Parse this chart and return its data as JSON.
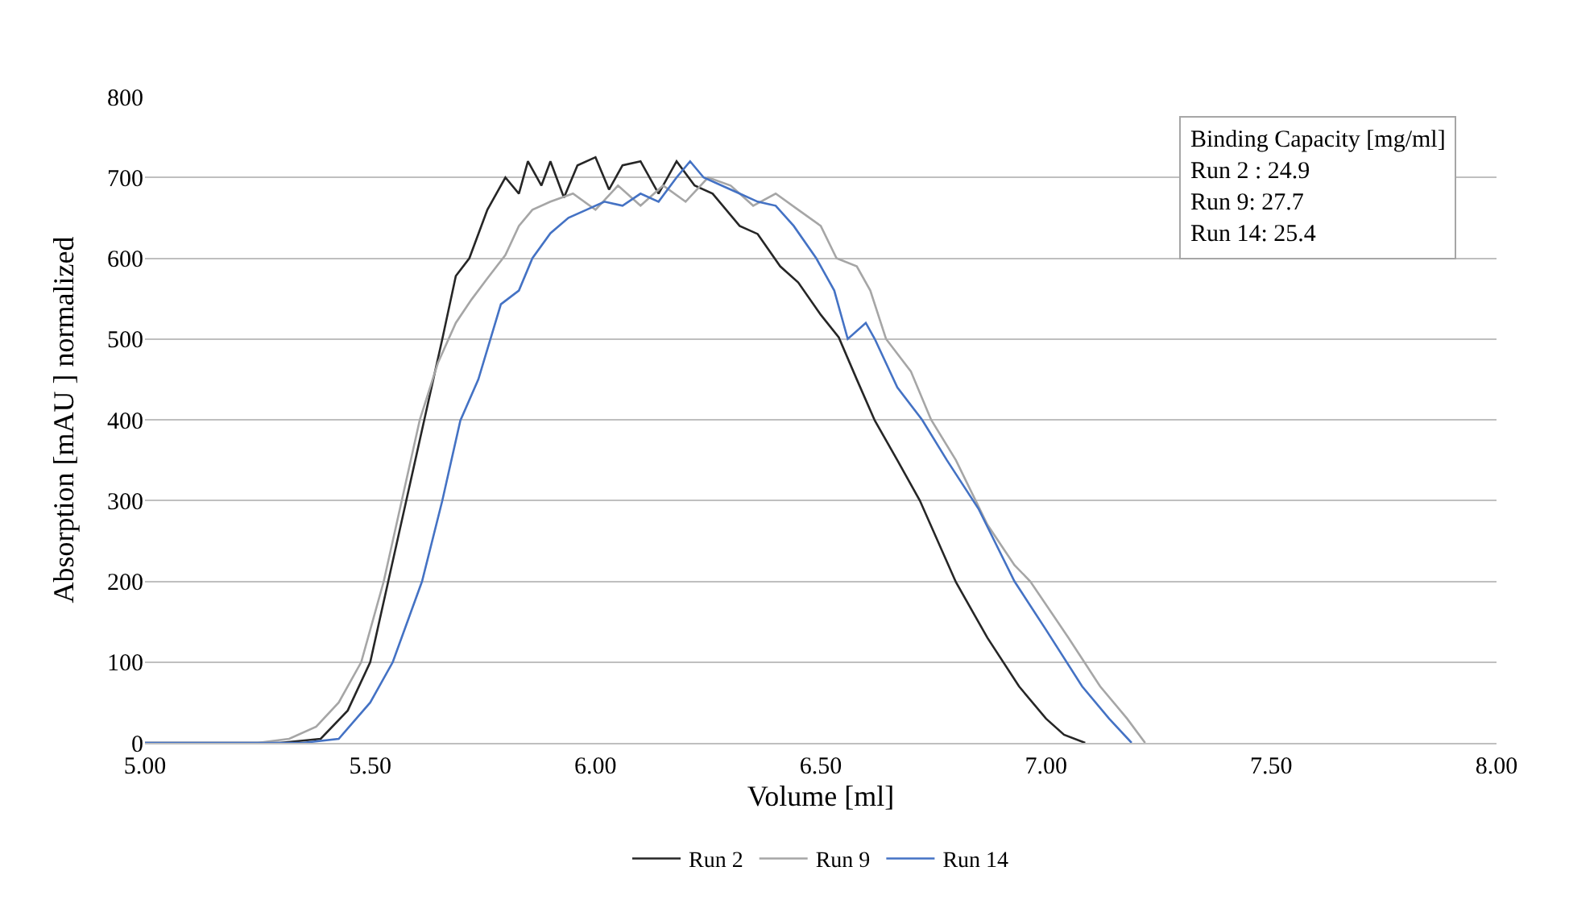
{
  "chart_data": {
    "type": "line",
    "xlabel": "Volume [ml]",
    "ylabel": "Absorption [mAU ] normalized",
    "xlim": [
      5.0,
      8.0
    ],
    "ylim": [
      0,
      800
    ],
    "xticks": [
      {
        "value": 5.0,
        "label": "5.00"
      },
      {
        "value": 5.5,
        "label": "5.50"
      },
      {
        "value": 6.0,
        "label": "6.00"
      },
      {
        "value": 6.5,
        "label": "6.50"
      },
      {
        "value": 7.0,
        "label": "7.00"
      },
      {
        "value": 7.5,
        "label": "7.50"
      },
      {
        "value": 8.0,
        "label": "8.00"
      }
    ],
    "yticks": [
      0,
      100,
      200,
      300,
      400,
      500,
      600,
      700,
      800
    ],
    "grid": "y",
    "legend": "bottom",
    "marker": "none",
    "line_style": "solid",
    "annotations": [
      "Binding Capacity [mg/ml]\nRun 2 : 24.9\nRun 9: 27.7\nRun 14: 25.4"
    ],
    "series": [
      {
        "name": "Run 2",
        "color": "#262626",
        "x": [
          5.0,
          5.3,
          5.39,
          5.45,
          5.5,
          5.54,
          5.58,
          5.62,
          5.66,
          5.69,
          5.72,
          5.76,
          5.8,
          5.83,
          5.85,
          5.88,
          5.9,
          5.93,
          5.96,
          6.0,
          6.03,
          6.06,
          6.1,
          6.14,
          6.18,
          6.22,
          6.26,
          6.32,
          6.36,
          6.41,
          6.45,
          6.5,
          6.54,
          6.58,
          6.62,
          6.67,
          6.72,
          6.8,
          6.87,
          6.94,
          7.0,
          7.04,
          7.087
        ],
        "values": [
          0,
          0,
          5,
          40,
          100,
          200,
          300,
          400,
          500,
          578,
          600,
          660,
          700,
          680,
          720,
          690,
          720,
          675,
          715,
          725,
          685,
          715,
          720,
          680,
          720,
          690,
          680,
          640,
          630,
          590,
          570,
          530,
          502,
          450,
          399,
          350,
          300,
          199,
          130,
          70,
          30,
          10,
          0
        ]
      },
      {
        "name": "Run 9",
        "color": "#a6a6a6",
        "x": [
          5.0,
          5.25,
          5.32,
          5.38,
          5.43,
          5.48,
          5.53,
          5.57,
          5.61,
          5.65,
          5.69,
          5.725,
          5.76,
          5.8,
          5.83,
          5.86,
          5.9,
          5.95,
          6.0,
          6.05,
          6.1,
          6.15,
          6.2,
          6.25,
          6.3,
          6.35,
          6.4,
          6.45,
          6.5,
          6.535,
          6.58,
          6.61,
          6.645,
          6.7,
          6.745,
          6.8,
          6.87,
          6.93,
          6.965,
          7.05,
          7.12,
          7.18,
          7.22
        ],
        "values": [
          0,
          0,
          5,
          20,
          50,
          100,
          200,
          300,
          400,
          470,
          520,
          549,
          575,
          604,
          640,
          660,
          670,
          680,
          660,
          690,
          665,
          690,
          670,
          700,
          690,
          665,
          680,
          660,
          640,
          600,
          590,
          560,
          500,
          460,
          400,
          350,
          270,
          220,
          200,
          130,
          70,
          30,
          0
        ]
      },
      {
        "name": "Run 14",
        "color": "#4472c4",
        "x": [
          5.0,
          5.35,
          5.43,
          5.5,
          5.55,
          5.615,
          5.66,
          5.7,
          5.74,
          5.79,
          5.83,
          5.86,
          5.9,
          5.94,
          5.98,
          6.02,
          6.06,
          6.1,
          6.14,
          6.18,
          6.21,
          6.24,
          6.28,
          6.32,
          6.36,
          6.4,
          6.44,
          6.49,
          6.53,
          6.56,
          6.6,
          6.62,
          6.67,
          6.725,
          6.78,
          6.85,
          6.93,
          7.0,
          7.08,
          7.14,
          7.19
        ],
        "values": [
          0,
          0,
          5,
          50,
          100,
          200,
          300,
          399,
          450,
          543,
          560,
          600,
          631,
          650,
          660,
          670,
          665,
          680,
          670,
          700,
          720,
          700,
          690,
          680,
          670,
          665,
          640,
          600,
          560,
          500,
          520,
          500,
          440,
          400,
          350,
          290,
          200,
          140,
          70,
          30,
          0
        ]
      }
    ]
  }
}
